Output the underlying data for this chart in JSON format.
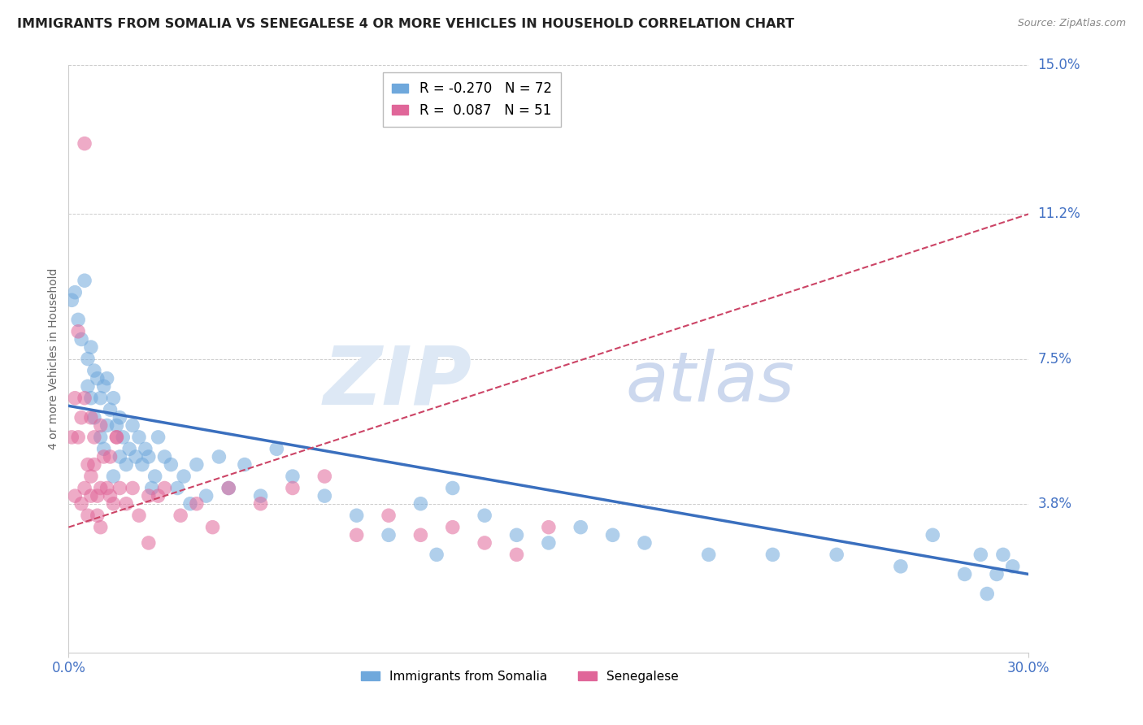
{
  "title": "IMMIGRANTS FROM SOMALIA VS SENEGALESE 4 OR MORE VEHICLES IN HOUSEHOLD CORRELATION CHART",
  "source": "Source: ZipAtlas.com",
  "ylabel": "4 or more Vehicles in Household",
  "xlim": [
    0.0,
    0.3
  ],
  "ylim": [
    0.0,
    0.15
  ],
  "xtick_positions": [
    0.0,
    0.3
  ],
  "xtick_labels": [
    "0.0%",
    "30.0%"
  ],
  "ytick_values": [
    0.038,
    0.075,
    0.112,
    0.15
  ],
  "ytick_labels": [
    "3.8%",
    "7.5%",
    "11.2%",
    "15.0%"
  ],
  "somalia_color": "#6fa8dc",
  "senegal_color": "#e06699",
  "somalia_line_color": "#3a6fbe",
  "senegal_line_color": "#cc4466",
  "somalia_R": -0.27,
  "somalia_N": 72,
  "senegal_R": 0.087,
  "senegal_N": 51,
  "somalia_label": "Immigrants from Somalia",
  "senegal_label": "Senegalese",
  "watermark_zip": "ZIP",
  "watermark_atlas": "atlas",
  "somalia_scatter_x": [
    0.001,
    0.002,
    0.003,
    0.004,
    0.005,
    0.006,
    0.006,
    0.007,
    0.007,
    0.008,
    0.008,
    0.009,
    0.01,
    0.01,
    0.011,
    0.011,
    0.012,
    0.012,
    0.013,
    0.014,
    0.014,
    0.015,
    0.016,
    0.016,
    0.017,
    0.018,
    0.019,
    0.02,
    0.021,
    0.022,
    0.023,
    0.024,
    0.025,
    0.026,
    0.027,
    0.028,
    0.03,
    0.032,
    0.034,
    0.036,
    0.038,
    0.04,
    0.043,
    0.047,
    0.05,
    0.055,
    0.06,
    0.065,
    0.07,
    0.08,
    0.09,
    0.1,
    0.11,
    0.115,
    0.12,
    0.13,
    0.14,
    0.15,
    0.16,
    0.17,
    0.18,
    0.2,
    0.22,
    0.24,
    0.26,
    0.27,
    0.28,
    0.285,
    0.287,
    0.29,
    0.292,
    0.295
  ],
  "somalia_scatter_y": [
    0.09,
    0.092,
    0.085,
    0.08,
    0.095,
    0.075,
    0.068,
    0.078,
    0.065,
    0.072,
    0.06,
    0.07,
    0.065,
    0.055,
    0.068,
    0.052,
    0.058,
    0.07,
    0.062,
    0.065,
    0.045,
    0.058,
    0.05,
    0.06,
    0.055,
    0.048,
    0.052,
    0.058,
    0.05,
    0.055,
    0.048,
    0.052,
    0.05,
    0.042,
    0.045,
    0.055,
    0.05,
    0.048,
    0.042,
    0.045,
    0.038,
    0.048,
    0.04,
    0.05,
    0.042,
    0.048,
    0.04,
    0.052,
    0.045,
    0.04,
    0.035,
    0.03,
    0.038,
    0.025,
    0.042,
    0.035,
    0.03,
    0.028,
    0.032,
    0.03,
    0.028,
    0.025,
    0.025,
    0.025,
    0.022,
    0.03,
    0.02,
    0.025,
    0.015,
    0.02,
    0.025,
    0.022
  ],
  "senegal_scatter_x": [
    0.001,
    0.002,
    0.002,
    0.003,
    0.003,
    0.004,
    0.004,
    0.005,
    0.005,
    0.006,
    0.006,
    0.007,
    0.007,
    0.008,
    0.008,
    0.009,
    0.009,
    0.01,
    0.01,
    0.011,
    0.012,
    0.013,
    0.013,
    0.014,
    0.015,
    0.016,
    0.018,
    0.02,
    0.022,
    0.025,
    0.028,
    0.03,
    0.035,
    0.04,
    0.045,
    0.05,
    0.06,
    0.07,
    0.08,
    0.09,
    0.1,
    0.11,
    0.12,
    0.13,
    0.14,
    0.15,
    0.005,
    0.007,
    0.01,
    0.015,
    0.025
  ],
  "senegal_scatter_y": [
    0.055,
    0.04,
    0.065,
    0.082,
    0.055,
    0.06,
    0.038,
    0.065,
    0.042,
    0.048,
    0.035,
    0.06,
    0.045,
    0.048,
    0.055,
    0.04,
    0.035,
    0.058,
    0.042,
    0.05,
    0.042,
    0.04,
    0.05,
    0.038,
    0.055,
    0.042,
    0.038,
    0.042,
    0.035,
    0.04,
    0.04,
    0.042,
    0.035,
    0.038,
    0.032,
    0.042,
    0.038,
    0.042,
    0.045,
    0.03,
    0.035,
    0.03,
    0.032,
    0.028,
    0.025,
    0.032,
    0.13,
    0.04,
    0.032,
    0.055,
    0.028
  ],
  "somalia_trend_x0": 0.0,
  "somalia_trend_y0": 0.063,
  "somalia_trend_x1": 0.3,
  "somalia_trend_y1": 0.02,
  "senegal_trend_x0": 0.0,
  "senegal_trend_y0": 0.032,
  "senegal_trend_x1": 0.3,
  "senegal_trend_y1": 0.112,
  "background_color": "#ffffff",
  "grid_color": "#cccccc",
  "title_color": "#222222",
  "ytick_color": "#4472c4",
  "xtick_color": "#4472c4",
  "source_color": "#888888"
}
